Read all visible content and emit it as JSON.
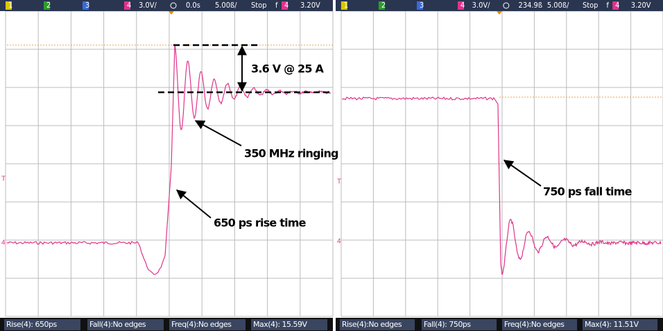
{
  "panels": [
    {
      "header": [
        "1",
        "2",
        "3",
        "4",
        "3.0V/",
        "0.0s",
        "5.00ß/",
        "Stop",
        "f",
        "4",
        "3.20V"
      ],
      "markers": [
        "T",
        "4"
      ],
      "annotations": [
        "3.6 V @ 25 A",
        "350 MHz ringing",
        "650 ps rise time"
      ],
      "measurements": [
        "Rise(4): 650ps",
        "Fall(4):No edges",
        "Freq(4):No edges",
        "Max(4): 15.59V"
      ]
    },
    {
      "header": [
        "1",
        "2",
        "3",
        "4",
        "3.0V/",
        "234.9ß",
        "5.00ß/",
        "Stop",
        "f",
        "4",
        "3.20V"
      ],
      "markers": [
        "T",
        "4"
      ],
      "annotations": [
        "750 ps fall time"
      ],
      "measurements": [
        "Rise(4):No edges",
        "Fall(4): 750ps",
        "Freq(4):No edges",
        "Max(4): 11.51V"
      ]
    }
  ]
}
